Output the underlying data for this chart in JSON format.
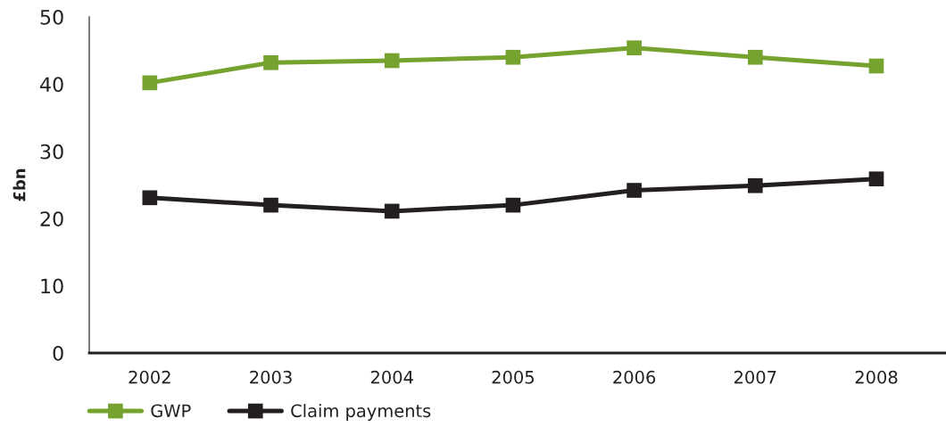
{
  "chart_data": {
    "type": "line",
    "ylabel": "£bn",
    "categories": [
      "2002",
      "2003",
      "2004",
      "2005",
      "2006",
      "2007",
      "2008"
    ],
    "series": [
      {
        "name": "GWP",
        "color": "#76a22f",
        "values": [
          40.2,
          43.2,
          43.5,
          44.0,
          45.4,
          44.0,
          42.7
        ]
      },
      {
        "name": "Claim payments",
        "color": "#231f20",
        "values": [
          23.1,
          22.0,
          21.1,
          22.0,
          24.2,
          24.9,
          25.9
        ]
      }
    ],
    "ylim": [
      0,
      50
    ],
    "yticks": [
      0,
      10,
      20,
      30,
      40,
      50
    ],
    "legend": "bottom",
    "marker": "square",
    "line_style": "solid"
  }
}
